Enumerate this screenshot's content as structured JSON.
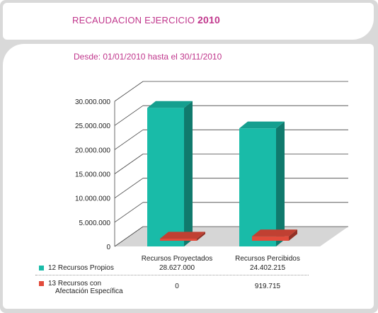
{
  "title": {
    "text": "RECAUDACION EJERCICIO",
    "year": "2010"
  },
  "subtitle": "Desde: 01/01/2010 hasta el 30/11/2010",
  "colors": {
    "accent": "#c0368c",
    "series1": "#19bba8",
    "series2": "#e24b3b"
  },
  "chart_data": {
    "type": "bar",
    "categories": [
      "Recursos Proyectados",
      "Recursos Percibidos"
    ],
    "series": [
      {
        "name": "12 Recursos Propios",
        "values": [
          28627000,
          24402215
        ],
        "labels": [
          "28.627.000",
          "24.402.215"
        ],
        "color": "#19bba8"
      },
      {
        "name": "13 Recursos con Afectación Específica",
        "values": [
          0,
          919715
        ],
        "labels": [
          "0",
          "919.715"
        ],
        "color": "#e24b3b"
      }
    ],
    "yticks": [
      0,
      5000000,
      10000000,
      15000000,
      20000000,
      25000000,
      30000000
    ],
    "ytick_labels": [
      "0",
      "5.000.000",
      "10.000.000",
      "15.000.000",
      "20.000.000",
      "25.000.000",
      "30.000.000"
    ],
    "ylim": [
      0,
      30000000
    ],
    "grid": true,
    "legend": "table-below"
  },
  "table": {
    "series1_label": "12 Recursos Propios",
    "series2_label_line1": "13 Recursos con",
    "series2_label_line2": "Afectación Específica"
  }
}
